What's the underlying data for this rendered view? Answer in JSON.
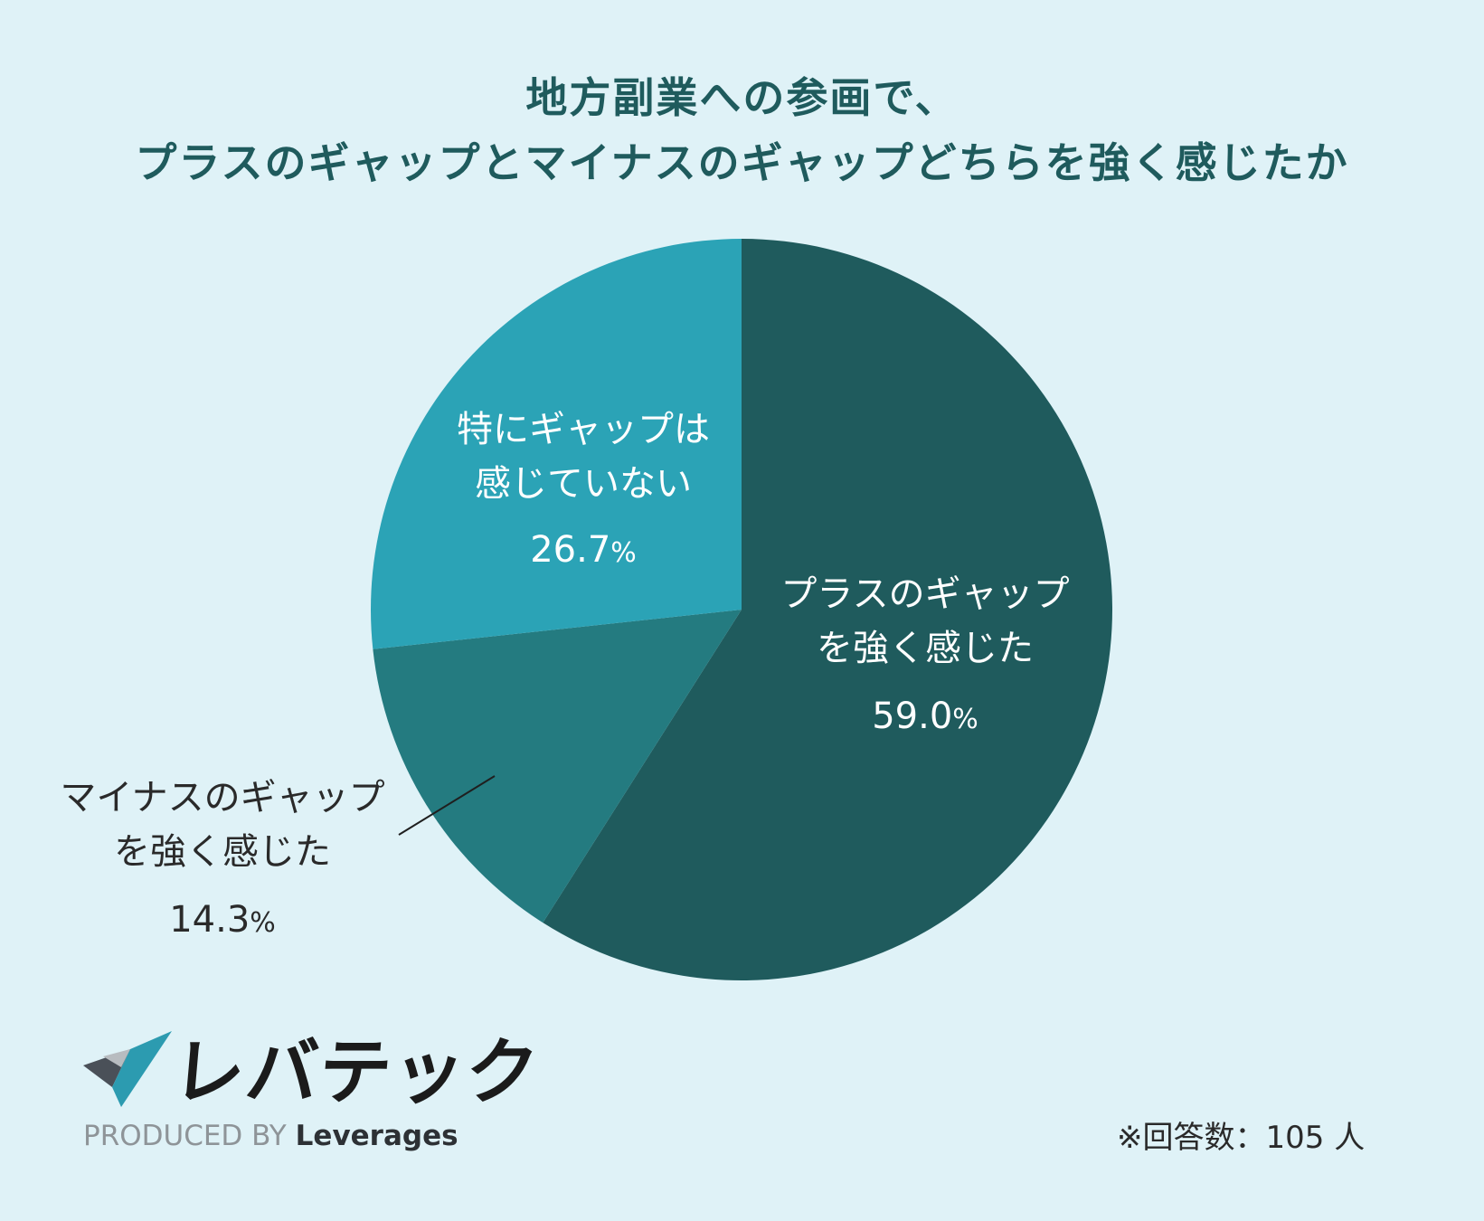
{
  "title": {
    "line1": "地方副業への参画で、",
    "line2": "プラスのギャップとマイナスのギャップどちらを強く感じたか"
  },
  "chart_data": {
    "type": "pie",
    "title": "地方副業への参画で、プラスのギャップとマイナスのギャップどちらを強く感じたか",
    "unit": "%",
    "slices": [
      {
        "label_lines": [
          "プラスのギャップ",
          "を強く感じた"
        ],
        "value": 59.0,
        "value_text": "59.0",
        "color": "#1f5b5d",
        "text_color": "#ffffff"
      },
      {
        "label_lines": [
          "マイナスのギャップ",
          "を強く感じた"
        ],
        "value": 14.3,
        "value_text": "14.3",
        "color": "#247b80",
        "text_color": "#2a2a2a"
      },
      {
        "label_lines": [
          "特にギャップは",
          "感じていない"
        ],
        "value": 26.7,
        "value_text": "26.7",
        "color": "#2ba3b6",
        "text_color": "#ffffff"
      }
    ]
  },
  "branding": {
    "brand_name": "レバテック",
    "produced_by": "PRODUCED BY",
    "company_name": "Leverages"
  },
  "footnote": {
    "text": "※回答数：105 人"
  },
  "colors": {
    "background": "#dff2f7",
    "title": "#1f5b5d",
    "leader_line": "#1f1f1f",
    "brand_text": "#1b1b1b",
    "produced_by_text": "#8e9498"
  }
}
